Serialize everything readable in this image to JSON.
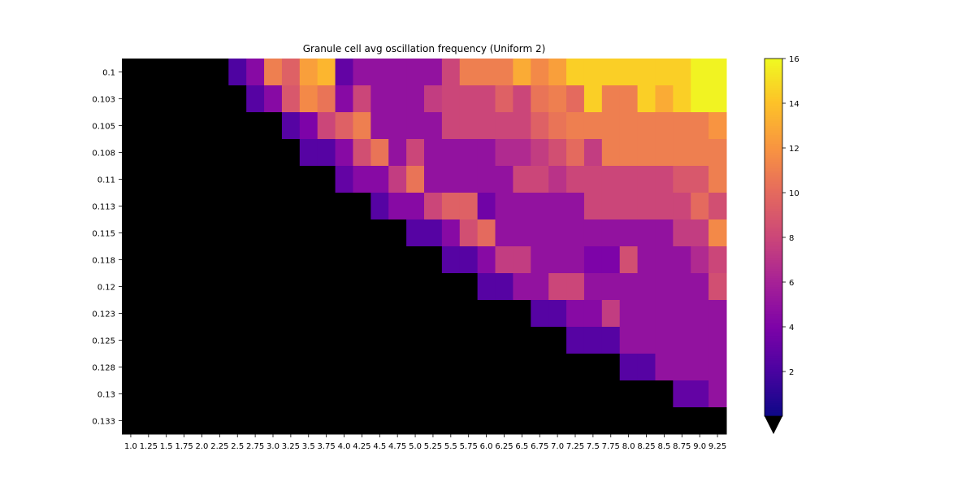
{
  "chart_data": {
    "type": "heatmap",
    "title": "Granule cell avg oscillation frequency (Uniform 2)",
    "x_categories": [
      "1.0",
      "1.25",
      "1.5",
      "1.75",
      "2.0",
      "2.25",
      "2.5",
      "2.75",
      "3.0",
      "3.25",
      "3.5",
      "3.75",
      "4.0",
      "4.25",
      "4.5",
      "4.75",
      "5.0",
      "5.25",
      "5.5",
      "5.75",
      "6.0",
      "6.25",
      "6.5",
      "6.75",
      "7.0",
      "7.25",
      "7.5",
      "7.75",
      "8.0",
      "8.25",
      "8.5",
      "8.75",
      "9.0",
      "9.25"
    ],
    "y_categories": [
      "0.1",
      "0.103",
      "0.105",
      "0.108",
      "0.11",
      "0.113",
      "0.115",
      "0.118",
      "0.12",
      "0.123",
      "0.125",
      "0.128",
      "0.13",
      "0.133"
    ],
    "colorbar": {
      "colormap": "plasma",
      "min": 0,
      "max": 16,
      "ticks": [
        2,
        4,
        6,
        8,
        10,
        12,
        14,
        16
      ],
      "extend": "min",
      "under_color": "#000000"
    },
    "values": [
      [
        null,
        null,
        null,
        null,
        null,
        null,
        2.2,
        4.5,
        11,
        9.5,
        12.5,
        13.5,
        3,
        5,
        5,
        5,
        5,
        5,
        8,
        11,
        11,
        11,
        13,
        11.5,
        12.5,
        14.5,
        14.5,
        14.5,
        14.5,
        14.5,
        14.5,
        14.5,
        15.8,
        15.8
      ],
      [
        null,
        null,
        null,
        null,
        null,
        null,
        null,
        2.5,
        4.5,
        9,
        11.5,
        10.5,
        4.5,
        8,
        5,
        5,
        5,
        7.5,
        8,
        8,
        8,
        9.5,
        8,
        10.5,
        11,
        10,
        14.5,
        11,
        11,
        14.5,
        13,
        14.5,
        15.8,
        15.8
      ],
      [
        null,
        null,
        null,
        null,
        null,
        null,
        null,
        null,
        null,
        2.5,
        4,
        8,
        9.5,
        11,
        5,
        5,
        5,
        5,
        8,
        8,
        8,
        8,
        8,
        9.5,
        10.5,
        11,
        11,
        11,
        11,
        11,
        11,
        11,
        11,
        12
      ],
      [
        null,
        null,
        null,
        null,
        null,
        null,
        null,
        null,
        null,
        null,
        2.5,
        2.5,
        4.5,
        8.5,
        10.5,
        5,
        8,
        5,
        5,
        5,
        5,
        6.5,
        6.5,
        7.5,
        8.5,
        10,
        7.5,
        11,
        11,
        11,
        11,
        11,
        11,
        11
      ],
      [
        null,
        null,
        null,
        null,
        null,
        null,
        null,
        null,
        null,
        null,
        null,
        null,
        3,
        4.5,
        4.5,
        7.5,
        10.5,
        5,
        5,
        5,
        5,
        5,
        8,
        8,
        7,
        8,
        8,
        8,
        8,
        8,
        8,
        9,
        9,
        11
      ],
      [
        null,
        null,
        null,
        null,
        null,
        null,
        null,
        null,
        null,
        null,
        null,
        null,
        null,
        null,
        2.5,
        4.5,
        4.5,
        8,
        9.5,
        9.5,
        3.5,
        5,
        5,
        5,
        5,
        5,
        8,
        8,
        8,
        8,
        8,
        8,
        10,
        8.5
      ],
      [
        null,
        null,
        null,
        null,
        null,
        null,
        null,
        null,
        null,
        null,
        null,
        null,
        null,
        null,
        null,
        null,
        2.5,
        2.5,
        4.5,
        8.5,
        10,
        5,
        5,
        5,
        5,
        5,
        5,
        5,
        5,
        5,
        5,
        7.5,
        7.5,
        11.5
      ],
      [
        null,
        null,
        null,
        null,
        null,
        null,
        null,
        null,
        null,
        null,
        null,
        null,
        null,
        null,
        null,
        null,
        null,
        null,
        2.5,
        2.5,
        4.5,
        7.5,
        7.5,
        5,
        5,
        5,
        4,
        4,
        8.5,
        5,
        5,
        5,
        6.5,
        8
      ],
      [
        null,
        null,
        null,
        null,
        null,
        null,
        null,
        null,
        null,
        null,
        null,
        null,
        null,
        null,
        null,
        null,
        null,
        null,
        null,
        null,
        2.5,
        2.5,
        5,
        5,
        8,
        8,
        5,
        5,
        5,
        5,
        5,
        5,
        5,
        8.5
      ],
      [
        null,
        null,
        null,
        null,
        null,
        null,
        null,
        null,
        null,
        null,
        null,
        null,
        null,
        null,
        null,
        null,
        null,
        null,
        null,
        null,
        null,
        null,
        null,
        2.5,
        2.5,
        4.5,
        4.5,
        7.5,
        5,
        5,
        5,
        5,
        5,
        5
      ],
      [
        null,
        null,
        null,
        null,
        null,
        null,
        null,
        null,
        null,
        null,
        null,
        null,
        null,
        null,
        null,
        null,
        null,
        null,
        null,
        null,
        null,
        null,
        null,
        null,
        null,
        2.5,
        2.5,
        2.5,
        5,
        5,
        5,
        5,
        5,
        5
      ],
      [
        null,
        null,
        null,
        null,
        null,
        null,
        null,
        null,
        null,
        null,
        null,
        null,
        null,
        null,
        null,
        null,
        null,
        null,
        null,
        null,
        null,
        null,
        null,
        null,
        null,
        null,
        null,
        null,
        2.5,
        2.5,
        5,
        5,
        5,
        5
      ],
      [
        null,
        null,
        null,
        null,
        null,
        null,
        null,
        null,
        null,
        null,
        null,
        null,
        null,
        null,
        null,
        null,
        null,
        null,
        null,
        null,
        null,
        null,
        null,
        null,
        null,
        null,
        null,
        null,
        null,
        null,
        null,
        3,
        3,
        5
      ],
      [
        null,
        null,
        null,
        null,
        null,
        null,
        null,
        null,
        null,
        null,
        null,
        null,
        null,
        null,
        null,
        null,
        null,
        null,
        null,
        null,
        null,
        null,
        null,
        null,
        null,
        null,
        null,
        null,
        null,
        null,
        null,
        null,
        null,
        null
      ]
    ]
  }
}
